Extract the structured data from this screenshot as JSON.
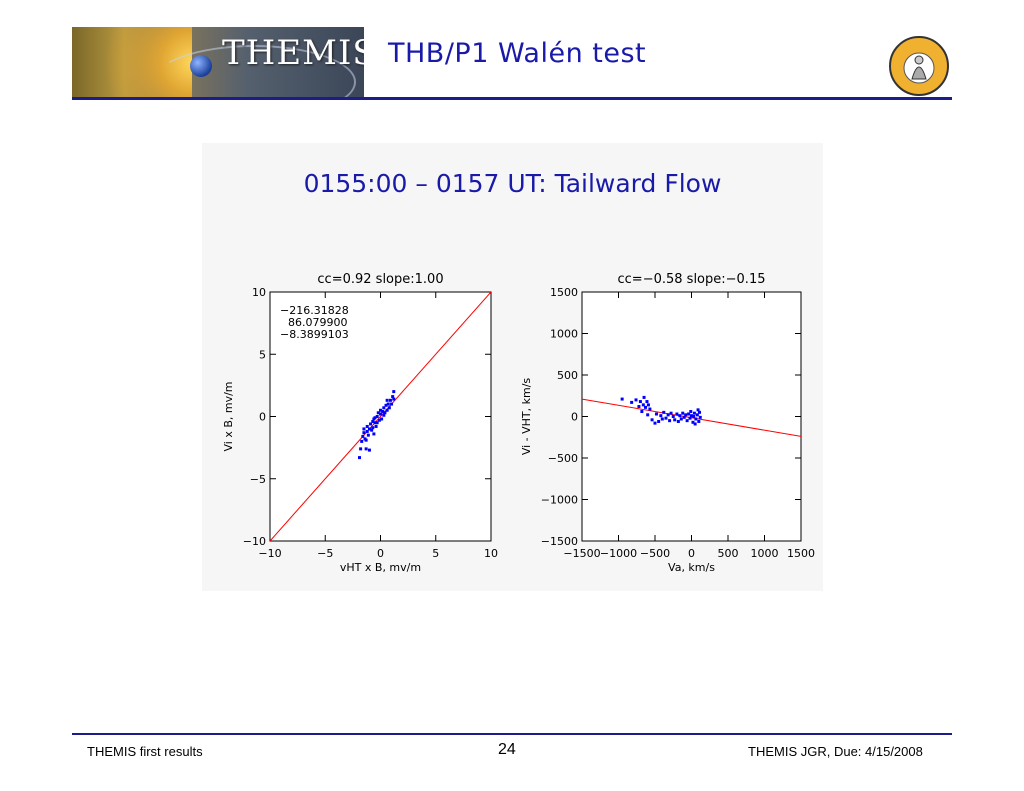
{
  "header": {
    "brand": "THEMIS",
    "title": "THB/P1 Walén test",
    "logo_text": "THEMIS"
  },
  "footer": {
    "left": "THEMIS first results",
    "page": "24",
    "right": "THEMIS JGR, Due: 4/15/2008"
  },
  "colors": {
    "title": "#1a1aa8",
    "rule": "#1c1c8a",
    "fit_line": "#ff0000",
    "points": "#0000ff"
  },
  "plot_title": "0155:00 – 0157 UT: Tailward Flow",
  "chart_data": [
    {
      "type": "scatter",
      "title": "cc=0.92 slope:1.00",
      "xlabel": "vHT x B, mv/m",
      "ylabel": "Vi x B, mv/m",
      "xlim": [
        -10,
        10
      ],
      "ylim": [
        -10,
        10
      ],
      "xticks": [
        -10,
        -5,
        0,
        5,
        10
      ],
      "yticks": [
        -10,
        -5,
        0,
        5,
        10
      ],
      "annotation": [
        "-216.31828",
        "86.079900",
        "-8.3899103"
      ],
      "fit_line": {
        "slope": 1.0,
        "intercept": 0.0
      },
      "points": [
        [
          -1.9,
          -3.3
        ],
        [
          -1.8,
          -2.6
        ],
        [
          -1.7,
          -2.0
        ],
        [
          -1.6,
          -1.6
        ],
        [
          -1.5,
          -1.3
        ],
        [
          -1.5,
          -1.0
        ],
        [
          -1.4,
          -1.8
        ],
        [
          -1.3,
          -2.6
        ],
        [
          -1.2,
          -1.2
        ],
        [
          -1.2,
          -0.8
        ],
        [
          -1.1,
          -1.5
        ],
        [
          -1.0,
          -1.0
        ],
        [
          -1.0,
          -2.7
        ],
        [
          -0.9,
          -0.6
        ],
        [
          -0.8,
          -1.1
        ],
        [
          -0.7,
          -0.9
        ],
        [
          -0.7,
          -0.4
        ],
        [
          -0.6,
          -1.4
        ],
        [
          -0.5,
          -0.5
        ],
        [
          -0.5,
          -0.1
        ],
        [
          -0.4,
          -0.8
        ],
        [
          -0.3,
          0.0
        ],
        [
          -0.3,
          -0.5
        ],
        [
          -0.2,
          0.3
        ],
        [
          -0.1,
          -0.3
        ],
        [
          0.0,
          0.2
        ],
        [
          0.0,
          0.5
        ],
        [
          0.1,
          -0.2
        ],
        [
          0.2,
          0.4
        ],
        [
          0.3,
          0.1
        ],
        [
          0.3,
          0.7
        ],
        [
          0.4,
          0.3
        ],
        [
          0.5,
          0.9
        ],
        [
          0.6,
          0.5
        ],
        [
          0.7,
          1.0
        ],
        [
          0.8,
          0.7
        ],
        [
          0.9,
          1.3
        ],
        [
          1.0,
          1.0
        ],
        [
          1.1,
          1.6
        ],
        [
          1.2,
          1.4
        ],
        [
          1.2,
          2.0
        ],
        [
          0.6,
          1.3
        ],
        [
          -0.6,
          -0.2
        ],
        [
          -1.3,
          -1.9
        ]
      ]
    },
    {
      "type": "scatter",
      "title": "cc=-0.58 slope:-0.15",
      "xlabel": "Va, km/s",
      "ylabel": "Vi - VHT, km/s",
      "xlim": [
        -1500,
        1500
      ],
      "ylim": [
        -1500,
        1500
      ],
      "xticks": [
        -1500,
        -1000,
        -500,
        0,
        500,
        1000,
        1500
      ],
      "yticks": [
        -1500,
        -1000,
        -500,
        0,
        500,
        1000,
        1500
      ],
      "fit_line": {
        "slope": -0.15,
        "intercept": -15
      },
      "points": [
        [
          -950,
          210
        ],
        [
          -820,
          170
        ],
        [
          -760,
          200
        ],
        [
          -720,
          120
        ],
        [
          -700,
          180
        ],
        [
          -680,
          60
        ],
        [
          -660,
          140
        ],
        [
          -650,
          230
        ],
        [
          -630,
          110
        ],
        [
          -610,
          180
        ],
        [
          -600,
          20
        ],
        [
          -590,
          140
        ],
        [
          -570,
          90
        ],
        [
          -540,
          -40
        ],
        [
          -500,
          -80
        ],
        [
          -480,
          30
        ],
        [
          -450,
          -60
        ],
        [
          -420,
          10
        ],
        [
          -400,
          -30
        ],
        [
          -380,
          50
        ],
        [
          -350,
          -20
        ],
        [
          -320,
          20
        ],
        [
          -300,
          -50
        ],
        [
          -280,
          40
        ],
        [
          -250,
          0
        ],
        [
          -230,
          -40
        ],
        [
          -200,
          30
        ],
        [
          -180,
          -60
        ],
        [
          -160,
          10
        ],
        [
          -140,
          -30
        ],
        [
          -120,
          40
        ],
        [
          -100,
          -10
        ],
        [
          -80,
          20
        ],
        [
          -60,
          -50
        ],
        [
          -40,
          30
        ],
        [
          -20,
          -20
        ],
        [
          0,
          10
        ],
        [
          20,
          -70
        ],
        [
          40,
          40
        ],
        [
          60,
          -30
        ],
        [
          80,
          20
        ],
        [
          100,
          -60
        ],
        [
          110,
          50
        ],
        [
          120,
          -10
        ],
        [
          90,
          80
        ],
        [
          50,
          -90
        ],
        [
          -10,
          60
        ],
        [
          30,
          0
        ]
      ]
    }
  ]
}
